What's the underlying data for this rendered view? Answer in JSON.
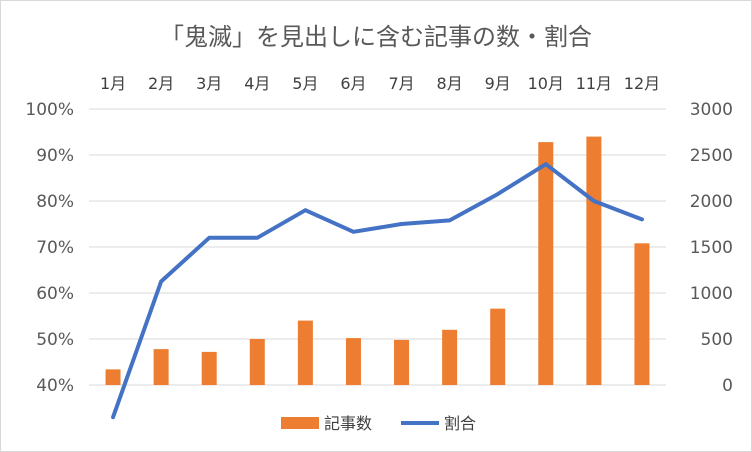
{
  "chart_data": {
    "type": "bar+line",
    "title": "「鬼滅」を見出しに含む記事の数・割合",
    "categories": [
      "1月",
      "2月",
      "3月",
      "4月",
      "5月",
      "6月",
      "7月",
      "8月",
      "9月",
      "10月",
      "11月",
      "12月"
    ],
    "series": [
      {
        "name": "記事数",
        "type": "bar",
        "axis": "right",
        "color": "#ED7D31",
        "values": [
          170,
          390,
          360,
          500,
          700,
          510,
          490,
          600,
          830,
          2640,
          2700,
          1540
        ]
      },
      {
        "name": "割合",
        "type": "line",
        "axis": "left",
        "color": "#4472C4",
        "values": [
          0.33,
          0.625,
          0.72,
          0.72,
          0.78,
          0.733,
          0.75,
          0.758,
          0.815,
          0.88,
          0.8,
          0.76
        ]
      }
    ],
    "yleft": {
      "min": 0.4,
      "max": 1.0,
      "ticks": [
        "40%",
        "50%",
        "60%",
        "70%",
        "80%",
        "90%",
        "100%"
      ]
    },
    "yright": {
      "min": 0,
      "max": 3000,
      "ticks": [
        "0",
        "500",
        "1000",
        "1500",
        "2000",
        "2500",
        "3000"
      ]
    },
    "grid": true,
    "legend": "bottom"
  }
}
